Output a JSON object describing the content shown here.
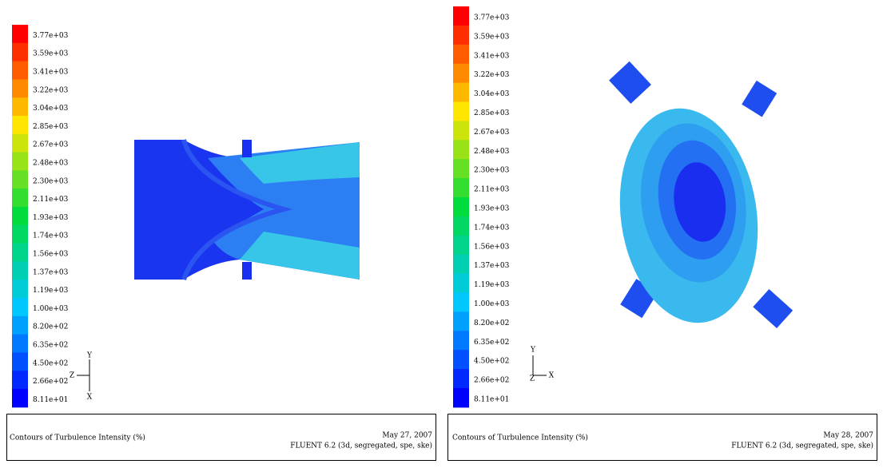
{
  "panels": [
    {
      "legend_labels": [
        "3.77e+03",
        "3.59e+03",
        "3.41e+03",
        "3.22e+03",
        "3.04e+03",
        "2.85e+03",
        "2.67e+03",
        "2.48e+03",
        "2.30e+03",
        "2.11e+03",
        "1.93e+03",
        "1.74e+03",
        "1.56e+03",
        "1.37e+03",
        "1.19e+03",
        "1.00e+03",
        "8.20e+02",
        "6.35e+02",
        "4.50e+02",
        "2.66e+02",
        "8.11e+01"
      ],
      "axes": {
        "y": "Y",
        "z": "Z",
        "x": "X"
      },
      "caption": {
        "title": "Contours of Turbulence Intensity (%)",
        "date": "May 27, 2007",
        "software": "FLUENT 6.2 (3d, segregated, spe, ske)"
      }
    },
    {
      "legend_labels": [
        "3.77e+03",
        "3.59e+03",
        "3.41e+03",
        "3.22e+03",
        "3.04e+03",
        "2.85e+03",
        "2.67e+03",
        "2.48e+03",
        "2.30e+03",
        "2.11e+03",
        "1.93e+03",
        "1.74e+03",
        "1.56e+03",
        "1.37e+03",
        "1.19e+03",
        "1.00e+03",
        "8.20e+02",
        "6.35e+02",
        "4.50e+02",
        "2.66e+02",
        "8.11e+01"
      ],
      "axes": {
        "y": "Y",
        "z": "Z",
        "x": "X"
      },
      "caption": {
        "title": "Contours of Turbulence Intensity (%)",
        "date": "May 28, 2007",
        "software": "FLUENT 6.2 (3d, segregated, spe, ske)"
      }
    }
  ]
}
